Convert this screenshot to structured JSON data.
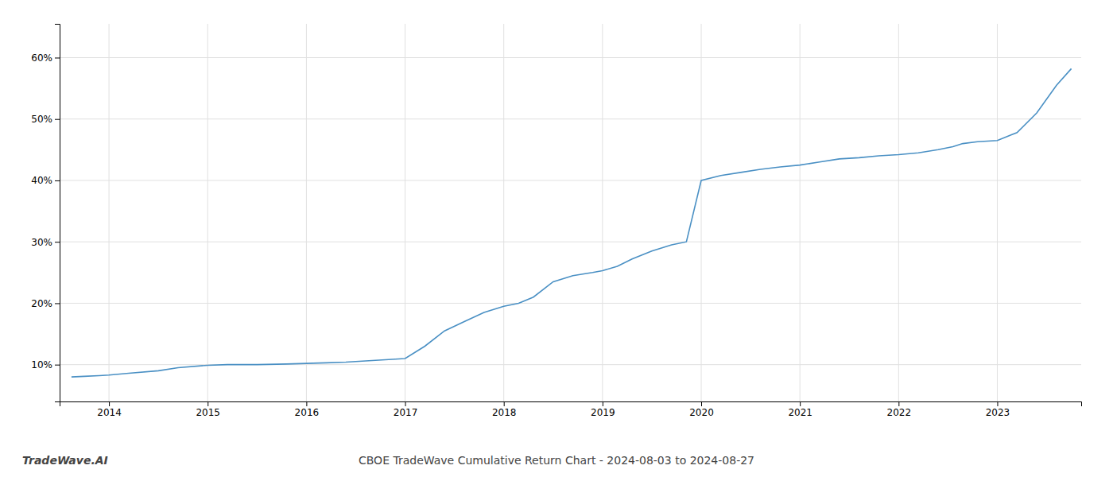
{
  "chart_data": {
    "type": "line",
    "title": "CBOE TradeWave Cumulative Return Chart - 2024-08-03 to 2024-08-27",
    "annotations": [
      "TradeWave.AI"
    ],
    "color": "#4a90c4",
    "grid": true,
    "x": [
      2013.62,
      2013.75,
      2013.9,
      2014.0,
      2014.2,
      2014.5,
      2014.7,
      2015.0,
      2015.2,
      2015.5,
      2015.8,
      2016.0,
      2016.2,
      2016.4,
      2016.6,
      2016.8,
      2017.0,
      2017.2,
      2017.4,
      2017.6,
      2017.8,
      2018.0,
      2018.15,
      2018.3,
      2018.5,
      2018.7,
      2018.9,
      2019.0,
      2019.15,
      2019.3,
      2019.5,
      2019.7,
      2019.85,
      2020.0,
      2020.2,
      2020.4,
      2020.6,
      2020.8,
      2021.0,
      2021.2,
      2021.4,
      2021.6,
      2021.8,
      2022.0,
      2022.2,
      2022.4,
      2022.55,
      2022.65,
      2022.8,
      2023.0,
      2023.2,
      2023.4,
      2023.6,
      2023.75
    ],
    "values": [
      0.08,
      0.081,
      0.082,
      0.083,
      0.086,
      0.09,
      0.095,
      0.099,
      0.1,
      0.1,
      0.101,
      0.102,
      0.103,
      0.104,
      0.106,
      0.108,
      0.11,
      0.13,
      0.155,
      0.17,
      0.185,
      0.195,
      0.2,
      0.21,
      0.235,
      0.245,
      0.25,
      0.253,
      0.26,
      0.272,
      0.285,
      0.295,
      0.3,
      0.4,
      0.408,
      0.413,
      0.418,
      0.422,
      0.425,
      0.43,
      0.435,
      0.437,
      0.44,
      0.442,
      0.445,
      0.45,
      0.455,
      0.46,
      0.463,
      0.465,
      0.478,
      0.51,
      0.555,
      0.582
    ],
    "xlim": [
      2013.5,
      2023.85
    ],
    "xticks": [
      2014,
      2015,
      2016,
      2017,
      2018,
      2019,
      2020,
      2021,
      2022,
      2023
    ],
    "ylim": [
      0.04,
      0.655
    ],
    "yticks": [
      {
        "value": 0.1,
        "label": "10%"
      },
      {
        "value": 0.2,
        "label": "20%"
      },
      {
        "value": 0.3,
        "label": "30%"
      },
      {
        "value": 0.4,
        "label": "40%"
      },
      {
        "value": 0.5,
        "label": "50%"
      },
      {
        "value": 0.6,
        "label": "60%"
      }
    ]
  }
}
